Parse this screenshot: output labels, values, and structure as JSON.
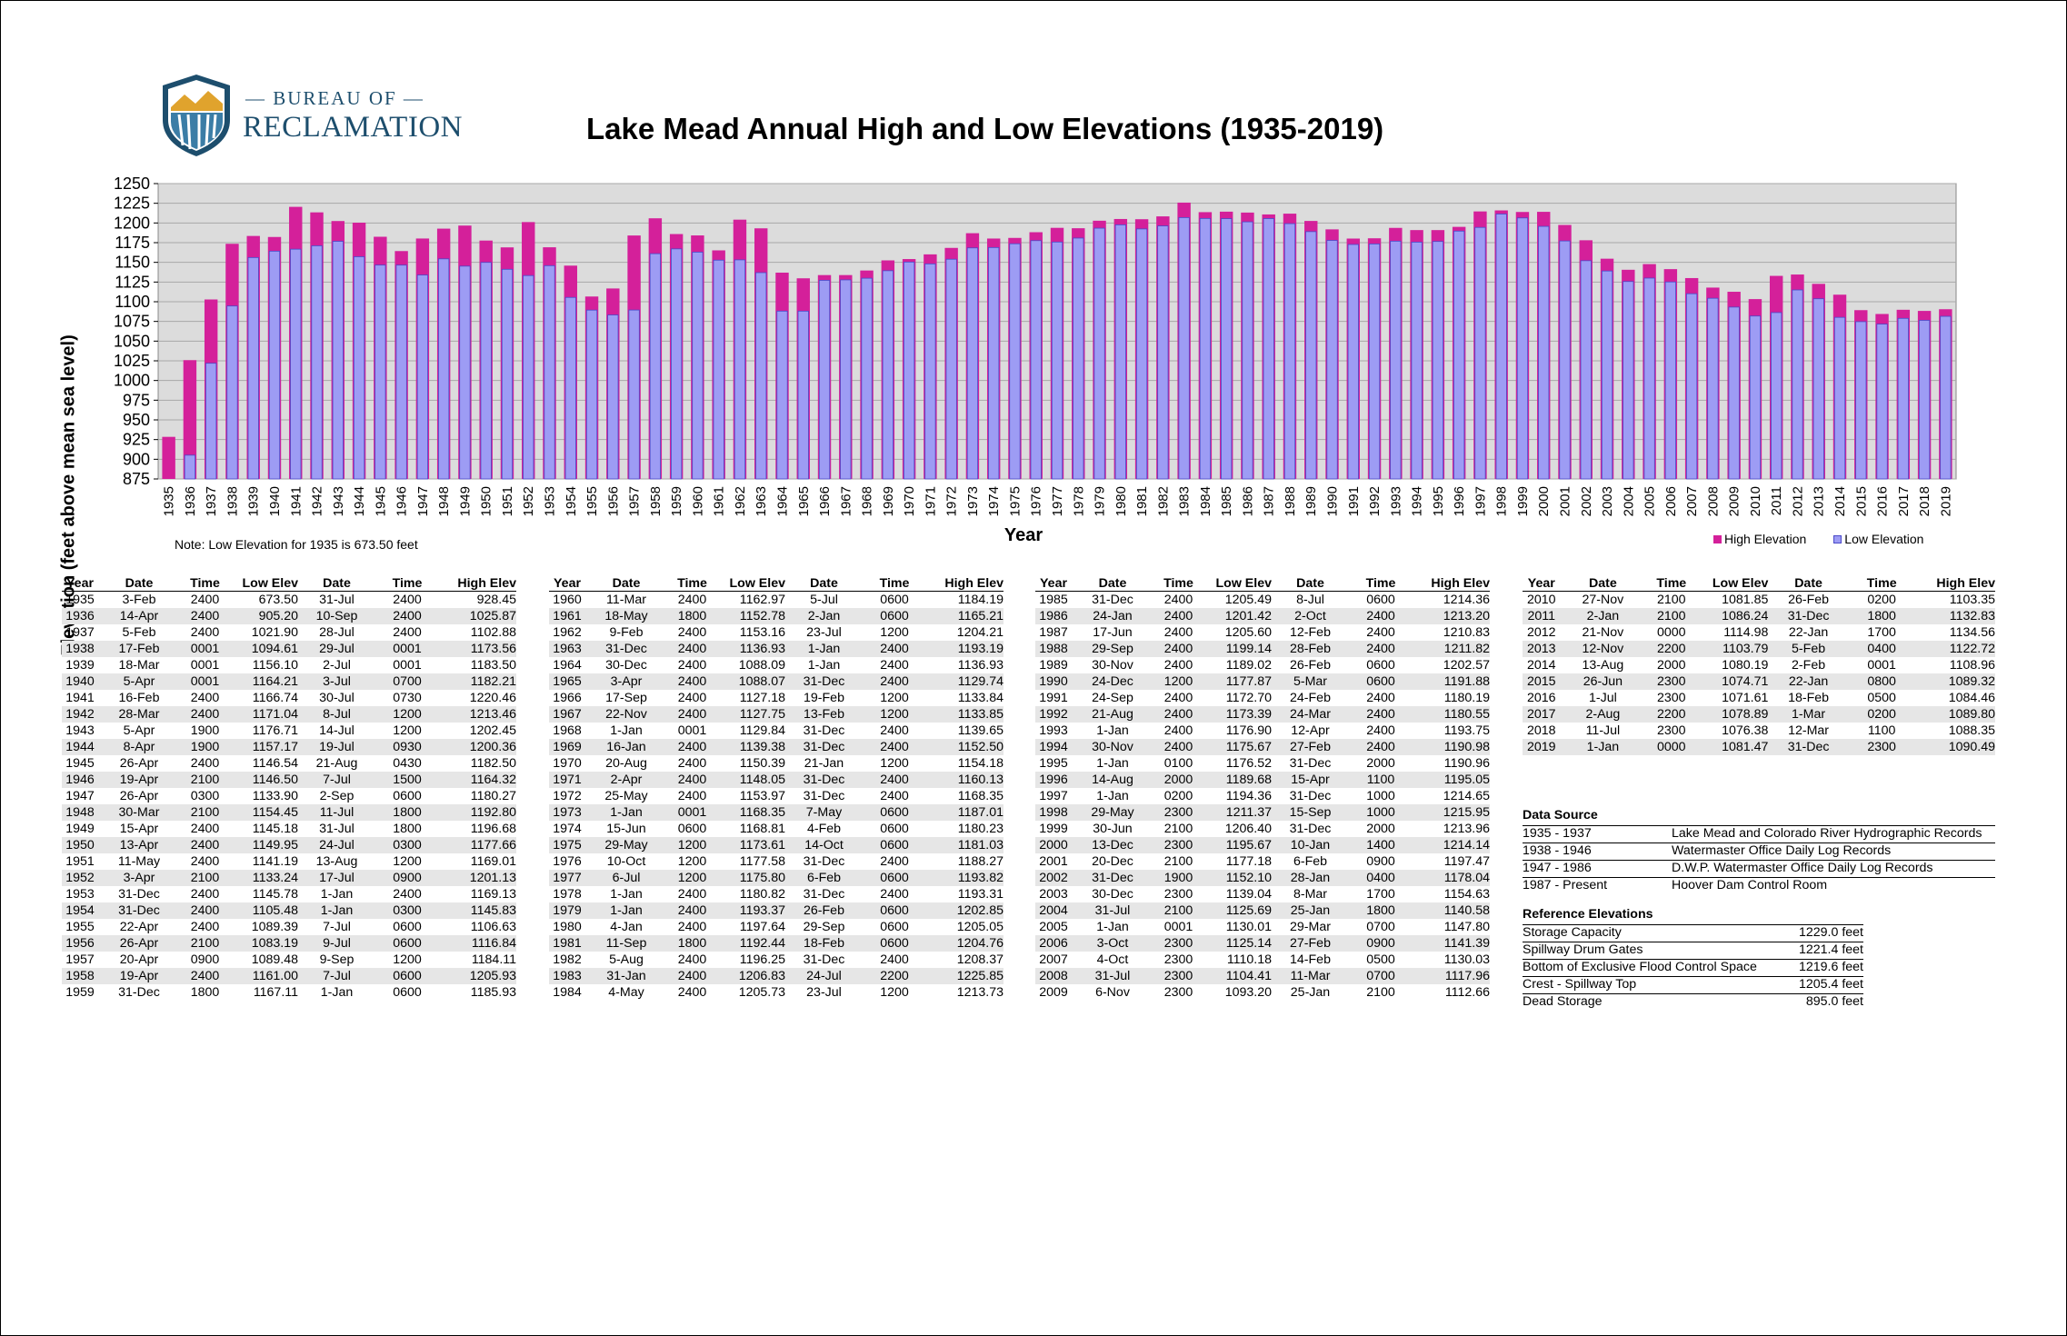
{
  "logo": {
    "top_line": "— BUREAU OF —",
    "bottom_line": "RECLAMATION"
  },
  "chart_data": {
    "type": "bar",
    "title": "Lake Mead Annual High and Low Elevations (1935-2019)",
    "xlabel": "Year",
    "ylabel": "Elevation (feet above mean sea level)",
    "ylim": [
      875,
      1250
    ],
    "yticks": [
      875,
      900,
      925,
      950,
      975,
      1000,
      1025,
      1050,
      1075,
      1100,
      1125,
      1150,
      1175,
      1200,
      1225,
      1250
    ],
    "grid": true,
    "legend_position": "bottom-right",
    "note": "Note: Low Elevation for 1935 is 673.50 feet",
    "colors": {
      "high": "#d4209a",
      "low": "#9d9cf4",
      "plot_bg": "#dcdcdc"
    },
    "series": [
      {
        "name": "High Elevation"
      },
      {
        "name": "Low Elevation"
      }
    ],
    "years": [
      "1935",
      "1936",
      "1937",
      "1938",
      "1939",
      "1940",
      "1941",
      "1942",
      "1943",
      "1944",
      "1945",
      "1946",
      "1947",
      "1948",
      "1949",
      "1950",
      "1951",
      "1952",
      "1953",
      "1954",
      "1955",
      "1956",
      "1957",
      "1958",
      "1959",
      "1960",
      "1961",
      "1962",
      "1963",
      "1964",
      "1965",
      "1966",
      "1967",
      "1968",
      "1969",
      "1970",
      "1971",
      "1972",
      "1973",
      "1974",
      "1975",
      "1976",
      "1977",
      "1978",
      "1979",
      "1980",
      "1981",
      "1982",
      "1983",
      "1984",
      "1985",
      "1986",
      "1987",
      "1988",
      "1989",
      "1990",
      "1991",
      "1992",
      "1993",
      "1994",
      "1995",
      "1996",
      "1997",
      "1998",
      "1999",
      "2000",
      "2001",
      "2002",
      "2003",
      "2004",
      "2005",
      "2006",
      "2007",
      "2008",
      "2009",
      "2010",
      "2011",
      "2012",
      "2013",
      "2014",
      "2015",
      "2016",
      "2017",
      "2018",
      "2019"
    ],
    "high": [
      928.45,
      1025.87,
      1102.88,
      1173.56,
      1183.5,
      1182.21,
      1220.46,
      1213.46,
      1202.45,
      1200.36,
      1182.5,
      1164.32,
      1180.27,
      1192.8,
      1196.68,
      1177.66,
      1169.01,
      1201.13,
      1169.13,
      1145.83,
      1106.63,
      1116.84,
      1184.11,
      1205.93,
      1185.93,
      1184.19,
      1165.21,
      1204.21,
      1193.19,
      1136.93,
      1129.74,
      1133.84,
      1133.85,
      1139.65,
      1152.5,
      1154.18,
      1160.13,
      1168.35,
      1187.01,
      1180.23,
      1181.03,
      1188.27,
      1193.82,
      1193.31,
      1202.85,
      1205.05,
      1204.76,
      1208.37,
      1225.85,
      1213.73,
      1214.36,
      1213.2,
      1210.83,
      1211.82,
      1202.57,
      1191.88,
      1180.19,
      1180.55,
      1193.75,
      1190.98,
      1190.96,
      1195.05,
      1214.65,
      1215.95,
      1213.96,
      1214.14,
      1197.47,
      1178.04,
      1154.63,
      1140.58,
      1147.8,
      1141.39,
      1130.03,
      1117.96,
      1112.66,
      1103.35,
      1132.83,
      1134.56,
      1122.72,
      1108.96,
      1089.32,
      1084.46,
      1089.8,
      1088.35,
      1090.49
    ],
    "low": [
      673.5,
      905.2,
      1021.9,
      1094.61,
      1156.1,
      1164.21,
      1166.74,
      1171.04,
      1176.71,
      1157.17,
      1146.54,
      1146.5,
      1133.9,
      1154.45,
      1145.18,
      1149.95,
      1141.19,
      1133.24,
      1145.78,
      1105.48,
      1089.39,
      1083.19,
      1089.48,
      1161.0,
      1167.11,
      1162.97,
      1152.78,
      1153.16,
      1136.93,
      1088.09,
      1088.07,
      1127.18,
      1127.75,
      1129.84,
      1139.38,
      1150.39,
      1148.05,
      1153.97,
      1168.35,
      1168.81,
      1173.61,
      1177.58,
      1175.8,
      1180.82,
      1193.37,
      1197.64,
      1192.44,
      1196.25,
      1206.83,
      1205.73,
      1205.49,
      1201.42,
      1205.6,
      1199.14,
      1189.02,
      1177.87,
      1172.7,
      1173.39,
      1176.9,
      1175.67,
      1176.52,
      1189.68,
      1194.36,
      1211.37,
      1206.4,
      1195.67,
      1177.18,
      1152.1,
      1139.04,
      1125.69,
      1130.01,
      1125.14,
      1110.18,
      1104.41,
      1093.2,
      1081.85,
      1086.24,
      1114.98,
      1103.79,
      1080.19,
      1074.71,
      1071.61,
      1078.89,
      1076.38,
      1081.47
    ]
  },
  "table": {
    "headers": [
      "Year",
      "Date",
      "Time",
      "Low Elev",
      "Date",
      "Time",
      "High Elev"
    ],
    "rows": [
      [
        "1935",
        "3-Feb",
        "2400",
        "673.50",
        "31-Jul",
        "2400",
        "928.45"
      ],
      [
        "1936",
        "14-Apr",
        "2400",
        "905.20",
        "10-Sep",
        "2400",
        "1025.87"
      ],
      [
        "1937",
        "5-Feb",
        "2400",
        "1021.90",
        "28-Jul",
        "2400",
        "1102.88"
      ],
      [
        "1938",
        "17-Feb",
        "0001",
        "1094.61",
        "29-Jul",
        "0001",
        "1173.56"
      ],
      [
        "1939",
        "18-Mar",
        "0001",
        "1156.10",
        "2-Jul",
        "0001",
        "1183.50"
      ],
      [
        "1940",
        "5-Apr",
        "0001",
        "1164.21",
        "3-Jul",
        "0700",
        "1182.21"
      ],
      [
        "1941",
        "16-Feb",
        "2400",
        "1166.74",
        "30-Jul",
        "0730",
        "1220.46"
      ],
      [
        "1942",
        "28-Mar",
        "2400",
        "1171.04",
        "8-Jul",
        "1200",
        "1213.46"
      ],
      [
        "1943",
        "5-Apr",
        "1900",
        "1176.71",
        "14-Jul",
        "1200",
        "1202.45"
      ],
      [
        "1944",
        "8-Apr",
        "1900",
        "1157.17",
        "19-Jul",
        "0930",
        "1200.36"
      ],
      [
        "1945",
        "26-Apr",
        "2400",
        "1146.54",
        "21-Aug",
        "0430",
        "1182.50"
      ],
      [
        "1946",
        "19-Apr",
        "2100",
        "1146.50",
        "7-Jul",
        "1500",
        "1164.32"
      ],
      [
        "1947",
        "26-Apr",
        "0300",
        "1133.90",
        "2-Sep",
        "0600",
        "1180.27"
      ],
      [
        "1948",
        "30-Mar",
        "2100",
        "1154.45",
        "11-Jul",
        "1800",
        "1192.80"
      ],
      [
        "1949",
        "15-Apr",
        "2400",
        "1145.18",
        "31-Jul",
        "1800",
        "1196.68"
      ],
      [
        "1950",
        "13-Apr",
        "2400",
        "1149.95",
        "24-Jul",
        "0300",
        "1177.66"
      ],
      [
        "1951",
        "11-May",
        "2400",
        "1141.19",
        "13-Aug",
        "1200",
        "1169.01"
      ],
      [
        "1952",
        "3-Apr",
        "2100",
        "1133.24",
        "17-Jul",
        "0900",
        "1201.13"
      ],
      [
        "1953",
        "31-Dec",
        "2400",
        "1145.78",
        "1-Jan",
        "2400",
        "1169.13"
      ],
      [
        "1954",
        "31-Dec",
        "2400",
        "1105.48",
        "1-Jan",
        "0300",
        "1145.83"
      ],
      [
        "1955",
        "22-Apr",
        "2400",
        "1089.39",
        "7-Jul",
        "0600",
        "1106.63"
      ],
      [
        "1956",
        "26-Apr",
        "2100",
        "1083.19",
        "9-Jul",
        "0600",
        "1116.84"
      ],
      [
        "1957",
        "20-Apr",
        "0900",
        "1089.48",
        "9-Sep",
        "1200",
        "1184.11"
      ],
      [
        "1958",
        "19-Apr",
        "2400",
        "1161.00",
        "7-Jul",
        "0600",
        "1205.93"
      ],
      [
        "1959",
        "31-Dec",
        "1800",
        "1167.11",
        "1-Jan",
        "0600",
        "1185.93"
      ],
      [
        "1960",
        "11-Mar",
        "2400",
        "1162.97",
        "5-Jul",
        "0600",
        "1184.19"
      ],
      [
        "1961",
        "18-May",
        "1800",
        "1152.78",
        "2-Jan",
        "0600",
        "1165.21"
      ],
      [
        "1962",
        "9-Feb",
        "2400",
        "1153.16",
        "23-Jul",
        "1200",
        "1204.21"
      ],
      [
        "1963",
        "31-Dec",
        "2400",
        "1136.93",
        "1-Jan",
        "2400",
        "1193.19"
      ],
      [
        "1964",
        "30-Dec",
        "2400",
        "1088.09",
        "1-Jan",
        "2400",
        "1136.93"
      ],
      [
        "1965",
        "3-Apr",
        "2400",
        "1088.07",
        "31-Dec",
        "2400",
        "1129.74"
      ],
      [
        "1966",
        "17-Sep",
        "2400",
        "1127.18",
        "19-Feb",
        "1200",
        "1133.84"
      ],
      [
        "1967",
        "22-Nov",
        "2400",
        "1127.75",
        "13-Feb",
        "1200",
        "1133.85"
      ],
      [
        "1968",
        "1-Jan",
        "0001",
        "1129.84",
        "31-Dec",
        "2400",
        "1139.65"
      ],
      [
        "1969",
        "16-Jan",
        "2400",
        "1139.38",
        "31-Dec",
        "2400",
        "1152.50"
      ],
      [
        "1970",
        "20-Aug",
        "2400",
        "1150.39",
        "21-Jan",
        "1200",
        "1154.18"
      ],
      [
        "1971",
        "2-Apr",
        "2400",
        "1148.05",
        "31-Dec",
        "2400",
        "1160.13"
      ],
      [
        "1972",
        "25-May",
        "2400",
        "1153.97",
        "31-Dec",
        "2400",
        "1168.35"
      ],
      [
        "1973",
        "1-Jan",
        "0001",
        "1168.35",
        "7-May",
        "0600",
        "1187.01"
      ],
      [
        "1974",
        "15-Jun",
        "0600",
        "1168.81",
        "4-Feb",
        "0600",
        "1180.23"
      ],
      [
        "1975",
        "29-May",
        "1200",
        "1173.61",
        "14-Oct",
        "0600",
        "1181.03"
      ],
      [
        "1976",
        "10-Oct",
        "1200",
        "1177.58",
        "31-Dec",
        "2400",
        "1188.27"
      ],
      [
        "1977",
        "6-Jul",
        "1200",
        "1175.80",
        "6-Feb",
        "0600",
        "1193.82"
      ],
      [
        "1978",
        "1-Jan",
        "2400",
        "1180.82",
        "31-Dec",
        "2400",
        "1193.31"
      ],
      [
        "1979",
        "1-Jan",
        "2400",
        "1193.37",
        "26-Feb",
        "0600",
        "1202.85"
      ],
      [
        "1980",
        "4-Jan",
        "2400",
        "1197.64",
        "29-Sep",
        "0600",
        "1205.05"
      ],
      [
        "1981",
        "11-Sep",
        "1800",
        "1192.44",
        "18-Feb",
        "0600",
        "1204.76"
      ],
      [
        "1982",
        "5-Aug",
        "2400",
        "1196.25",
        "31-Dec",
        "2400",
        "1208.37"
      ],
      [
        "1983",
        "31-Jan",
        "2400",
        "1206.83",
        "24-Jul",
        "2200",
        "1225.85"
      ],
      [
        "1984",
        "4-May",
        "2400",
        "1205.73",
        "23-Jul",
        "1200",
        "1213.73"
      ],
      [
        "1985",
        "31-Dec",
        "2400",
        "1205.49",
        "8-Jul",
        "0600",
        "1214.36"
      ],
      [
        "1986",
        "24-Jan",
        "2400",
        "1201.42",
        "2-Oct",
        "2400",
        "1213.20"
      ],
      [
        "1987",
        "17-Jun",
        "2400",
        "1205.60",
        "12-Feb",
        "2400",
        "1210.83"
      ],
      [
        "1988",
        "29-Sep",
        "2400",
        "1199.14",
        "28-Feb",
        "2400",
        "1211.82"
      ],
      [
        "1989",
        "30-Nov",
        "2400",
        "1189.02",
        "26-Feb",
        "0600",
        "1202.57"
      ],
      [
        "1990",
        "24-Dec",
        "1200",
        "1177.87",
        "5-Mar",
        "0600",
        "1191.88"
      ],
      [
        "1991",
        "24-Sep",
        "2400",
        "1172.70",
        "24-Feb",
        "2400",
        "1180.19"
      ],
      [
        "1992",
        "21-Aug",
        "2400",
        "1173.39",
        "24-Mar",
        "2400",
        "1180.55"
      ],
      [
        "1993",
        "1-Jan",
        "2400",
        "1176.90",
        "12-Apr",
        "2400",
        "1193.75"
      ],
      [
        "1994",
        "30-Nov",
        "2400",
        "1175.67",
        "27-Feb",
        "2400",
        "1190.98"
      ],
      [
        "1995",
        "1-Jan",
        "0100",
        "1176.52",
        "31-Dec",
        "2000",
        "1190.96"
      ],
      [
        "1996",
        "14-Aug",
        "2000",
        "1189.68",
        "15-Apr",
        "1100",
        "1195.05"
      ],
      [
        "1997",
        "1-Jan",
        "0200",
        "1194.36",
        "31-Dec",
        "1000",
        "1214.65"
      ],
      [
        "1998",
        "29-May",
        "2300",
        "1211.37",
        "15-Sep",
        "1000",
        "1215.95"
      ],
      [
        "1999",
        "30-Jun",
        "2100",
        "1206.40",
        "31-Dec",
        "2000",
        "1213.96"
      ],
      [
        "2000",
        "13-Dec",
        "2300",
        "1195.67",
        "10-Jan",
        "1400",
        "1214.14"
      ],
      [
        "2001",
        "20-Dec",
        "2100",
        "1177.18",
        "6-Feb",
        "0900",
        "1197.47"
      ],
      [
        "2002",
        "31-Dec",
        "1900",
        "1152.10",
        "28-Jan",
        "0400",
        "1178.04"
      ],
      [
        "2003",
        "30-Dec",
        "2300",
        "1139.04",
        "8-Mar",
        "1700",
        "1154.63"
      ],
      [
        "2004",
        "31-Jul",
        "2100",
        "1125.69",
        "25-Jan",
        "1800",
        "1140.58"
      ],
      [
        "2005",
        "1-Jan",
        "0001",
        "1130.01",
        "29-Mar",
        "0700",
        "1147.80"
      ],
      [
        "2006",
        "3-Oct",
        "2300",
        "1125.14",
        "27-Feb",
        "0900",
        "1141.39"
      ],
      [
        "2007",
        "4-Oct",
        "2300",
        "1110.18",
        "14-Feb",
        "0500",
        "1130.03"
      ],
      [
        "2008",
        "31-Jul",
        "2300",
        "1104.41",
        "11-Mar",
        "0700",
        "1117.96"
      ],
      [
        "2009",
        "6-Nov",
        "2300",
        "1093.20",
        "25-Jan",
        "2100",
        "1112.66"
      ],
      [
        "2010",
        "27-Nov",
        "2100",
        "1081.85",
        "26-Feb",
        "0200",
        "1103.35"
      ],
      [
        "2011",
        "2-Jan",
        "2100",
        "1086.24",
        "31-Dec",
        "1800",
        "1132.83"
      ],
      [
        "2012",
        "21-Nov",
        "0000",
        "1114.98",
        "22-Jan",
        "1700",
        "1134.56"
      ],
      [
        "2013",
        "12-Nov",
        "2200",
        "1103.79",
        "5-Feb",
        "0400",
        "1122.72"
      ],
      [
        "2014",
        "13-Aug",
        "2000",
        "1080.19",
        "2-Feb",
        "0001",
        "1108.96"
      ],
      [
        "2015",
        "26-Jun",
        "2300",
        "1074.71",
        "22-Jan",
        "0800",
        "1089.32"
      ],
      [
        "2016",
        "1-Jul",
        "2300",
        "1071.61",
        "18-Feb",
        "0500",
        "1084.46"
      ],
      [
        "2017",
        "2-Aug",
        "2200",
        "1078.89",
        "1-Mar",
        "0200",
        "1089.80"
      ],
      [
        "2018",
        "11-Jul",
        "2300",
        "1076.38",
        "12-Mar",
        "1100",
        "1088.35"
      ],
      [
        "2019",
        "1-Jan",
        "0000",
        "1081.47",
        "31-Dec",
        "2300",
        "1090.49"
      ]
    ]
  },
  "data_source": {
    "title": "Data Source",
    "rows": [
      [
        "1935 - 1937",
        "Lake Mead and Colorado River Hydrographic Records"
      ],
      [
        "1938 - 1946",
        "Watermaster Office Daily Log Records"
      ],
      [
        "1947 - 1986",
        "D.W.P. Watermaster Office Daily Log Records"
      ],
      [
        "1987 - Present",
        "Hoover Dam Control Room"
      ]
    ]
  },
  "reference_elevations": {
    "title": "Reference Elevations",
    "rows": [
      [
        "Storage Capacity",
        "1229.0 feet"
      ],
      [
        "Spillway Drum Gates",
        "1221.4 feet"
      ],
      [
        "Bottom of Exclusive Flood Control Space",
        "1219.6 feet"
      ],
      [
        "Crest - Spillway Top",
        "1205.4 feet"
      ],
      [
        "Dead Storage",
        "895.0 feet"
      ]
    ]
  }
}
